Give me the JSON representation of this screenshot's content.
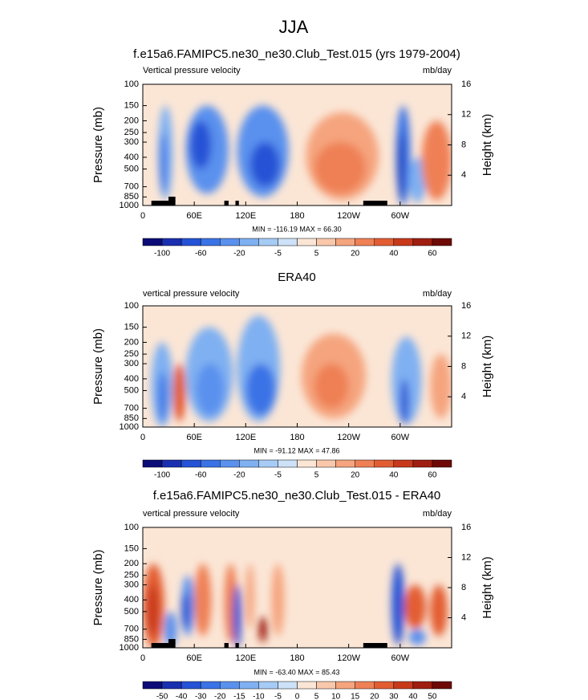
{
  "title": "JJA",
  "chart_data": [
    {
      "type": "contour",
      "title": "f.e15a6.FAMIPC5.ne30_ne30.Club_Test.015 (yrs 1979-2004)",
      "left_string": "Vertical pressure velocity",
      "right_string": "mb/day",
      "ylabel": "Pressure (mb)",
      "y2label": "Height (km)",
      "xlim": [
        0,
        360
      ],
      "xticks": [
        0,
        {
          "value": 60,
          "label": "60E"
        },
        {
          "value": 120,
          "label": "120E"
        },
        180,
        {
          "value": 240,
          "label": "120W"
        },
        {
          "value": 300,
          "label": "60W"
        }
      ],
      "ylim": [
        1000,
        100
      ],
      "log_y": true,
      "yticks": [
        1000,
        850,
        700,
        500,
        400,
        300,
        250,
        200,
        150,
        100
      ],
      "y2lim": [
        0,
        16
      ],
      "y2ticks": [
        4,
        8,
        12,
        16
      ],
      "stats": "MIN = -116.19  MAX = 66.30",
      "colorbar": {
        "labels": [
          -100,
          -60,
          -20,
          -5,
          5,
          20,
          40,
          60
        ],
        "colors": [
          "#0c0c78",
          "#1a2fb0",
          "#2552d6",
          "#3a73e6",
          "#5a91ee",
          "#7fb0f2",
          "#a6cbf5",
          "#cde2f8",
          "#fbe6d6",
          "#f9c8aa",
          "#f5a47e",
          "#ef8055",
          "#e35d32",
          "#c8391c",
          "#a01e10",
          "#6e0a06"
        ]
      }
    },
    {
      "type": "contour",
      "title": "ERA40",
      "left_string": "vertical pressure velocity",
      "right_string": "mb/day",
      "ylabel": "Pressure (mb)",
      "y2label": "Height (km)",
      "xlim": [
        0,
        360
      ],
      "xticks": [
        0,
        {
          "value": 60,
          "label": "60E"
        },
        {
          "value": 120,
          "label": "120E"
        },
        180,
        {
          "value": 240,
          "label": "120W"
        },
        {
          "value": 300,
          "label": "60W"
        }
      ],
      "ylim": [
        1000,
        100
      ],
      "log_y": true,
      "yticks": [
        1000,
        850,
        700,
        500,
        400,
        300,
        250,
        200,
        150,
        100
      ],
      "y2lim": [
        0,
        16
      ],
      "y2ticks": [
        4,
        8,
        12,
        16
      ],
      "stats": "MIN = -91.12  MAX = 47.86",
      "colorbar": {
        "labels": [
          -100,
          -60,
          -20,
          -5,
          5,
          20,
          40,
          60
        ],
        "colors": [
          "#0c0c78",
          "#1a2fb0",
          "#2552d6",
          "#3a73e6",
          "#5a91ee",
          "#7fb0f2",
          "#a6cbf5",
          "#cde2f8",
          "#fbe6d6",
          "#f9c8aa",
          "#f5a47e",
          "#ef8055",
          "#e35d32",
          "#c8391c",
          "#a01e10",
          "#6e0a06"
        ]
      }
    },
    {
      "type": "contour",
      "title": "f.e15a6.FAMIPC5.ne30_ne30.Club_Test.015 - ERA40",
      "left_string": "vertical pressure velocity",
      "right_string": "mb/day",
      "ylabel": "Pressure (mb)",
      "y2label": "Height (km)",
      "xlim": [
        0,
        360
      ],
      "xticks": [
        0,
        {
          "value": 60,
          "label": "60E"
        },
        {
          "value": 120,
          "label": "120E"
        },
        180,
        {
          "value": 240,
          "label": "120W"
        },
        {
          "value": 300,
          "label": "60W"
        }
      ],
      "ylim": [
        1000,
        100
      ],
      "log_y": true,
      "yticks": [
        1000,
        850,
        700,
        500,
        400,
        300,
        250,
        200,
        150,
        100
      ],
      "y2lim": [
        0,
        16
      ],
      "y2ticks": [
        4,
        8,
        12,
        16
      ],
      "stats": "MIN = -63.40  MAX = 85.43",
      "colorbar": {
        "labels": [
          -50,
          -40,
          -30,
          -20,
          -15,
          -10,
          -5,
          0,
          5,
          10,
          15,
          20,
          30,
          40,
          50
        ],
        "colors": [
          "#0c0c78",
          "#1a2fb0",
          "#2552d6",
          "#3a73e6",
          "#5a91ee",
          "#7fb0f2",
          "#a6cbf5",
          "#cde2f8",
          "#fbe6d6",
          "#f9c8aa",
          "#f5a47e",
          "#ef8055",
          "#e35d32",
          "#c8391c",
          "#a01e10",
          "#6e0a06"
        ]
      }
    }
  ]
}
